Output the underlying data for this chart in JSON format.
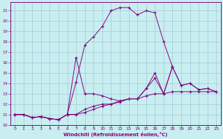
{
  "xlabel": "Windchill (Refroidissement éolien,°C)",
  "background_color": "#c8eef0",
  "grid_color": "#a0c8d8",
  "line_color": "#800080",
  "xlim": [
    -0.5,
    23.5
  ],
  "ylim": [
    10,
    21.8
  ],
  "xticks": [
    0,
    1,
    2,
    3,
    4,
    5,
    6,
    7,
    8,
    9,
    10,
    11,
    12,
    13,
    14,
    15,
    16,
    17,
    18,
    19,
    20,
    21,
    22,
    23
  ],
  "yticks": [
    10,
    11,
    12,
    13,
    14,
    15,
    16,
    17,
    18,
    19,
    20,
    21
  ],
  "line1_x": [
    0,
    1,
    2,
    3,
    4,
    5,
    6,
    7,
    8,
    9,
    10,
    11,
    12,
    13,
    14,
    15,
    16,
    17,
    18,
    19,
    20,
    21,
    22,
    23
  ],
  "line1_y": [
    11.0,
    11.0,
    10.7,
    10.8,
    10.6,
    10.5,
    11.0,
    11.0,
    11.2,
    11.5,
    11.8,
    12.0,
    12.2,
    12.5,
    12.5,
    12.8,
    13.0,
    13.0,
    13.2,
    13.2,
    13.2,
    13.2,
    13.2,
    13.2
  ],
  "line2_x": [
    0,
    1,
    2,
    3,
    4,
    5,
    6,
    7,
    8,
    9,
    10,
    11,
    12,
    13,
    14,
    15,
    16,
    17,
    18
  ],
  "line2_y": [
    11.0,
    11.0,
    10.7,
    10.8,
    10.6,
    10.5,
    11.0,
    14.1,
    17.7,
    18.5,
    19.5,
    21.0,
    21.3,
    21.3,
    20.6,
    21.0,
    20.8,
    18.0,
    15.6
  ],
  "line3_x": [
    0,
    1,
    2,
    3,
    4,
    5,
    6,
    7,
    8,
    9,
    10,
    11,
    12,
    13,
    14,
    15,
    16,
    17,
    18,
    19,
    20,
    21,
    22,
    23
  ],
  "line3_y": [
    11.0,
    11.0,
    10.7,
    10.8,
    10.6,
    10.5,
    11.0,
    16.5,
    13.0,
    13.0,
    12.8,
    12.5,
    12.3,
    12.5,
    12.5,
    13.5,
    14.5,
    13.0,
    15.6,
    13.8,
    14.0,
    13.4,
    13.5,
    13.2
  ],
  "line4_x": [
    0,
    1,
    2,
    3,
    4,
    5,
    6,
    7,
    8,
    9,
    10,
    11,
    12,
    13,
    14,
    15,
    16,
    17,
    18,
    19,
    20,
    21,
    22,
    23
  ],
  "line4_y": [
    11.0,
    11.0,
    10.7,
    10.8,
    10.6,
    10.5,
    11.0,
    11.0,
    11.5,
    11.8,
    12.0,
    12.0,
    12.3,
    12.5,
    12.5,
    13.5,
    15.0,
    13.0,
    15.6,
    13.8,
    14.0,
    13.4,
    13.5,
    13.2
  ]
}
